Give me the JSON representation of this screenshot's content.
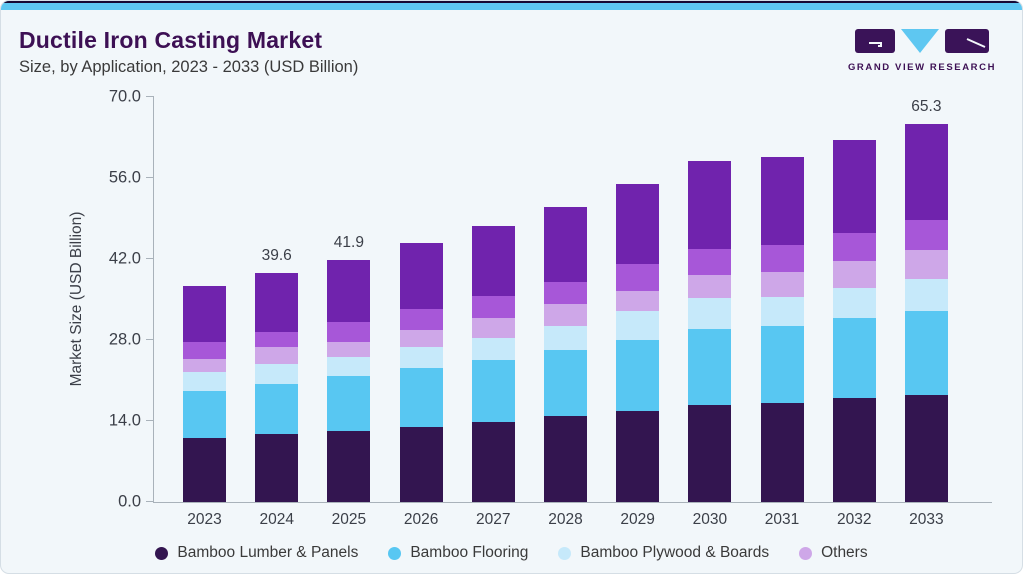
{
  "card": {
    "title": "Ductile Iron Casting Market",
    "subtitle": "Size, by Application, 2023 - 2033 (USD Billion)",
    "logo_text": "GRAND VIEW RESEARCH"
  },
  "colors": {
    "card_background": "#f2f7fa",
    "accent_strip": "#5ec7f1",
    "title_text": "#3d1054",
    "axis_line": "#a9b2ba",
    "axis_text": "#3b3f48"
  },
  "chart_data": {
    "type": "bar",
    "stacked": true,
    "grid": false,
    "title": "Ductile Iron Casting Market Size, by Application, 2023 - 2033 (USD Billion)",
    "xlabel": "",
    "ylabel": "Market Size (USD Billion)",
    "ylim": [
      0,
      70
    ],
    "yticks": [
      "0.0",
      "14.0",
      "28.0",
      "42.0",
      "56.0",
      "70.0"
    ],
    "categories": [
      "2023",
      "2024",
      "2025",
      "2026",
      "2027",
      "2028",
      "2029",
      "2030",
      "2031",
      "2032",
      "2033"
    ],
    "series": [
      {
        "name": "Bamboo Lumber & Panels",
        "color": "#331550",
        "values": [
          11.0,
          11.7,
          12.2,
          12.9,
          13.9,
          14.8,
          15.7,
          16.8,
          17.1,
          18.0,
          18.5
        ]
      },
      {
        "name": "Bamboo Flooring",
        "color": "#58c7f2",
        "values": [
          8.2,
          8.7,
          9.5,
          10.2,
          10.7,
          11.4,
          12.3,
          13.1,
          13.4,
          13.8,
          14.6
        ]
      },
      {
        "name": "Bamboo Plywood & Boards",
        "color": "#c6e9fa",
        "values": [
          3.3,
          3.4,
          3.3,
          3.7,
          3.7,
          4.2,
          5.0,
          5.4,
          5.0,
          5.2,
          5.4
        ]
      },
      {
        "name": "Others",
        "color": "#cea7e8",
        "values": [
          2.3,
          3.0,
          2.7,
          3.0,
          3.5,
          3.9,
          3.5,
          3.9,
          4.3,
          4.6,
          5.0
        ]
      },
      {
        "name": "",
        "color": "#a757d8",
        "values": [
          2.9,
          2.6,
          3.5,
          3.5,
          3.8,
          3.7,
          4.6,
          4.5,
          4.6,
          4.9,
          5.3
        ]
      },
      {
        "name": "",
        "color": "#7023ad",
        "values": [
          9.7,
          10.2,
          10.7,
          11.4,
          12.1,
          13.0,
          13.8,
          15.3,
          15.3,
          16.0,
          16.5
        ]
      }
    ],
    "bar_total_labels": [
      "",
      "39.6",
      "41.9",
      "",
      "",
      "",
      "",
      "",
      "",
      "",
      "65.3"
    ],
    "legend": {
      "position": "bottom",
      "items": [
        {
          "label": "Bamboo Lumber & Panels",
          "color": "#331550"
        },
        {
          "label": "Bamboo Flooring",
          "color": "#58c7f2"
        },
        {
          "label": "Bamboo Plywood & Boards",
          "color": "#c6e9fa"
        },
        {
          "label": "Others",
          "color": "#cea7e8"
        }
      ]
    }
  }
}
